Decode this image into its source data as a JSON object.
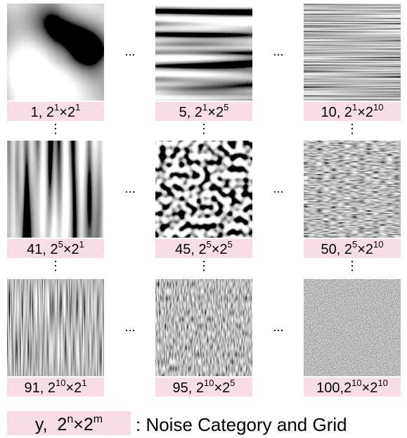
{
  "grid": {
    "rows": [
      [
        {
          "label": [
            "1, 2",
            "1",
            "×2",
            "1"
          ]
        },
        {
          "label": [
            "5, 2",
            "1",
            "×2",
            "5"
          ]
        },
        {
          "label": [
            "10, 2",
            "1",
            "×2",
            "10"
          ]
        }
      ],
      [
        {
          "label": [
            "41, 2",
            "5",
            "×2",
            "1"
          ]
        },
        {
          "label": [
            "45, 2",
            "5",
            "×2",
            "5"
          ]
        },
        {
          "label": [
            "50, 2",
            "5",
            "×2",
            "10"
          ]
        }
      ],
      [
        {
          "label": [
            "91, 2",
            "10",
            "×2",
            "1"
          ]
        },
        {
          "label": [
            "95, 2",
            "10",
            "×2",
            "5"
          ]
        },
        {
          "label": [
            "100,2",
            "10",
            "×2",
            "10"
          ]
        }
      ]
    ]
  },
  "ellipsis": "...",
  "vdots": "⋮",
  "legend": {
    "key": [
      "y,  2",
      "n",
      "×2",
      "m"
    ],
    "text": ": Noise Category and Grid"
  }
}
